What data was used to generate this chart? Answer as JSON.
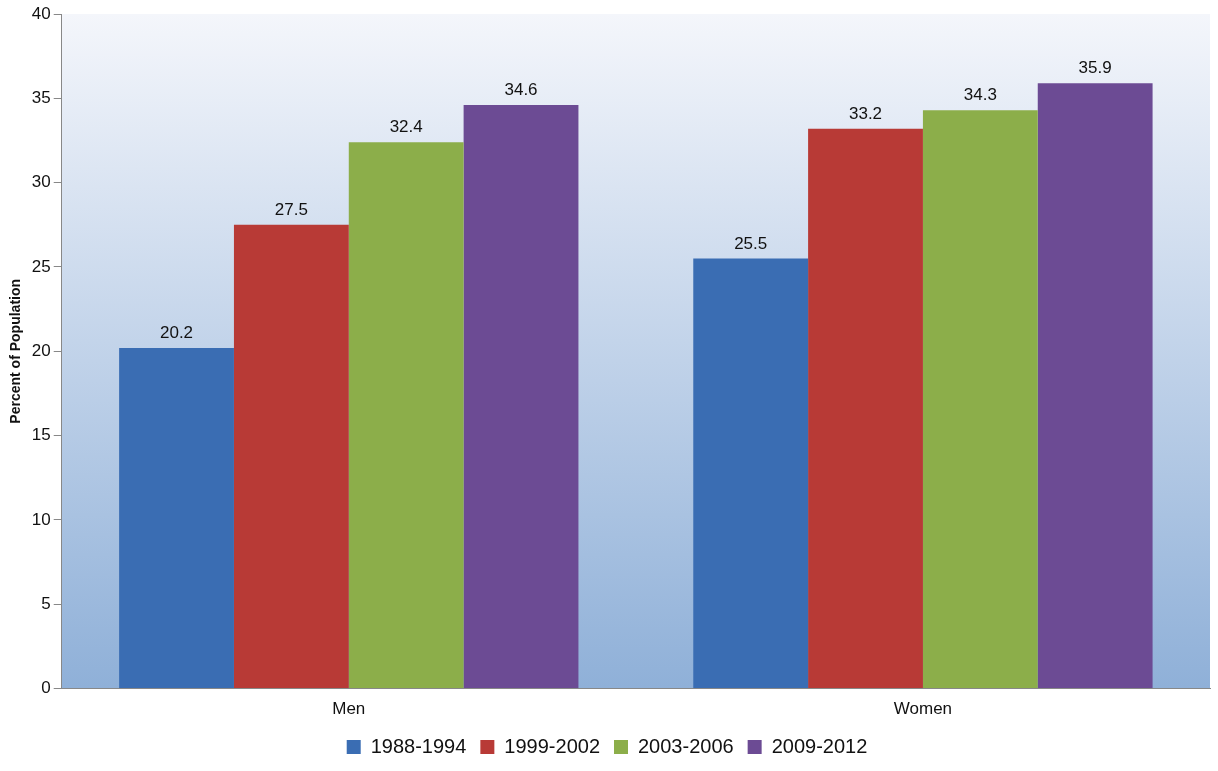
{
  "chart_data": {
    "type": "bar",
    "ylabel": "Percent of Population",
    "categories": [
      "Men",
      "Women"
    ],
    "series": [
      {
        "name": "1988-1994",
        "color": "#3a6db3",
        "values": [
          20.2,
          25.5
        ]
      },
      {
        "name": "1999-2002",
        "color": "#b83a36",
        "values": [
          27.5,
          33.2
        ]
      },
      {
        "name": "2003-2006",
        "color": "#8cae4a",
        "values": [
          32.4,
          34.3
        ]
      },
      {
        "name": "2009-2012",
        "color": "#6c4b94",
        "values": [
          34.6,
          35.9
        ]
      }
    ],
    "ylim": [
      0,
      40
    ],
    "yticks": [
      0,
      5,
      10,
      15,
      20,
      25,
      30,
      35,
      40
    ],
    "grid": false,
    "legend": "bottom",
    "data_labels": true
  }
}
